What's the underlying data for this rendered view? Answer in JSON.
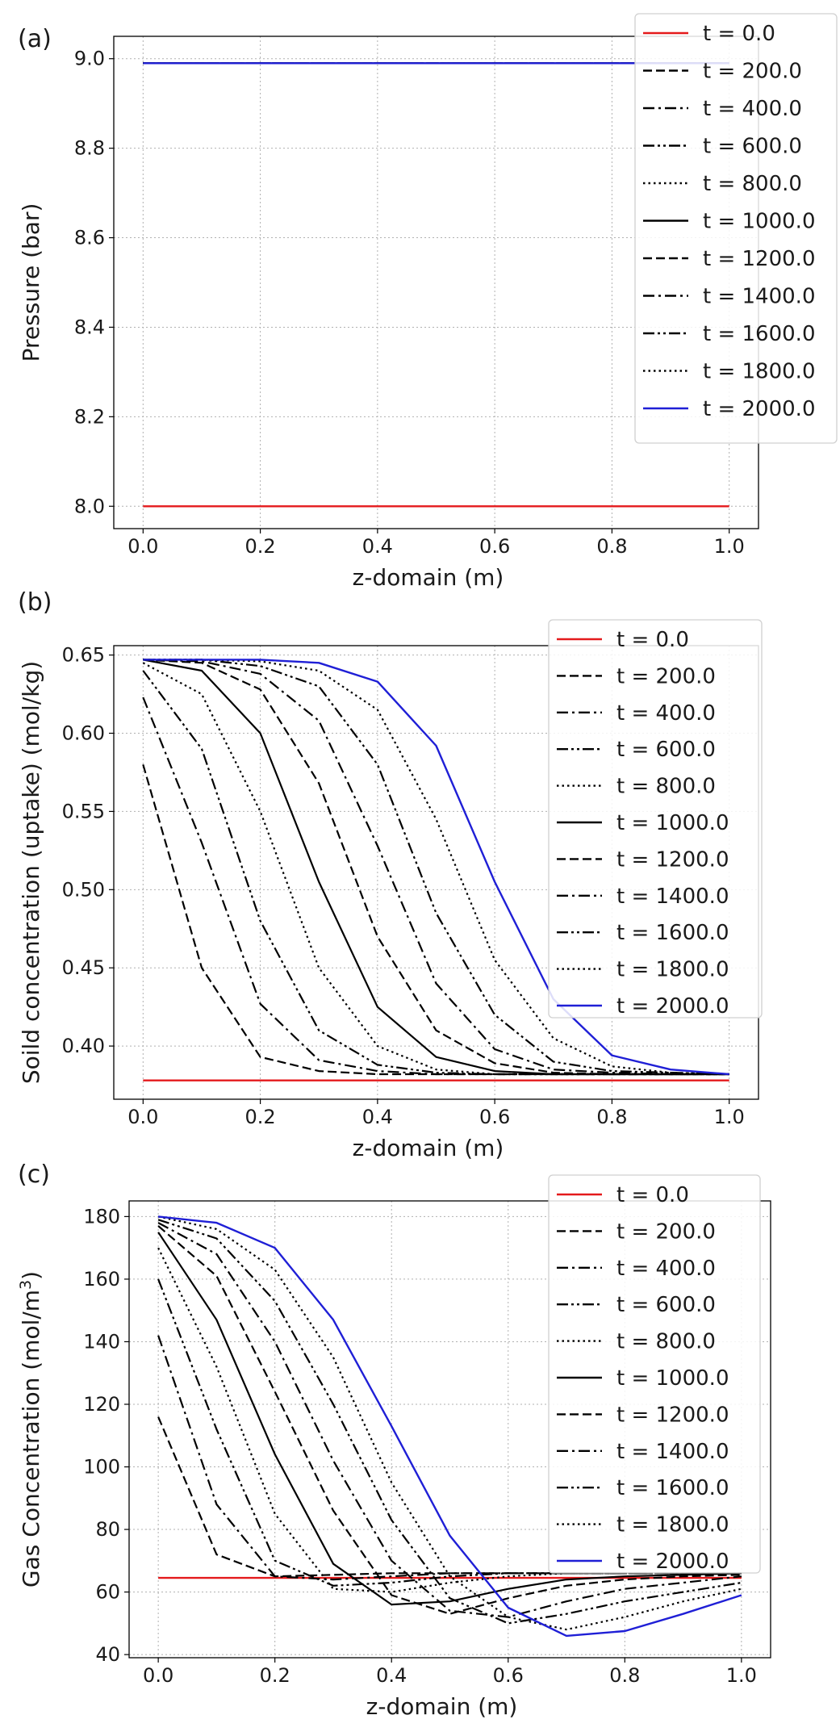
{
  "chart_data": [
    {
      "panel_label": "(a)",
      "type": "line",
      "xlabel": "z-domain (m)",
      "ylabel": "Pressure (bar)",
      "xlim": [
        -0.05,
        1.05
      ],
      "ylim": [
        7.95,
        9.05
      ],
      "xticks": [
        0.0,
        0.2,
        0.4,
        0.6,
        0.8,
        1.0
      ],
      "xtick_labels": [
        "0.0",
        "0.2",
        "0.4",
        "0.6",
        "0.8",
        "1.0"
      ],
      "yticks": [
        8.0,
        8.2,
        8.4,
        8.6,
        8.8,
        9.0
      ],
      "ytick_labels": [
        "8.0",
        "8.2",
        "8.4",
        "8.6",
        "8.8",
        "9.0"
      ],
      "grid": true,
      "legend_position": "top-right",
      "x": [
        0.0,
        0.1,
        0.2,
        0.3,
        0.4,
        0.5,
        0.6,
        0.7,
        0.8,
        0.9,
        1.0
      ],
      "series": [
        {
          "name": "t = 0.0",
          "color": "#e41a1c",
          "dash": "solid",
          "values": [
            8.0,
            8.0,
            8.0,
            8.0,
            8.0,
            8.0,
            8.0,
            8.0,
            8.0,
            8.0,
            8.0
          ]
        },
        {
          "name": "t = 200.0",
          "color": "#000000",
          "dash": "dashed",
          "values": [
            8.99,
            8.99,
            8.99,
            8.99,
            8.99,
            8.99,
            8.99,
            8.99,
            8.99,
            8.99,
            8.99
          ]
        },
        {
          "name": "t = 400.0",
          "color": "#000000",
          "dash": "dashdot",
          "values": [
            8.99,
            8.99,
            8.99,
            8.99,
            8.99,
            8.99,
            8.99,
            8.99,
            8.99,
            8.99,
            8.99
          ]
        },
        {
          "name": "t = 600.0",
          "color": "#000000",
          "dash": "dashdotdot",
          "values": [
            8.99,
            8.99,
            8.99,
            8.99,
            8.99,
            8.99,
            8.99,
            8.99,
            8.99,
            8.99,
            8.99
          ]
        },
        {
          "name": "t = 800.0",
          "color": "#000000",
          "dash": "dotted",
          "values": [
            8.99,
            8.99,
            8.99,
            8.99,
            8.99,
            8.99,
            8.99,
            8.99,
            8.99,
            8.99,
            8.99
          ]
        },
        {
          "name": "t = 1000.0",
          "color": "#000000",
          "dash": "solid",
          "values": [
            8.99,
            8.99,
            8.99,
            8.99,
            8.99,
            8.99,
            8.99,
            8.99,
            8.99,
            8.99,
            8.99
          ]
        },
        {
          "name": "t = 1200.0",
          "color": "#000000",
          "dash": "dashed",
          "values": [
            8.99,
            8.99,
            8.99,
            8.99,
            8.99,
            8.99,
            8.99,
            8.99,
            8.99,
            8.99,
            8.99
          ]
        },
        {
          "name": "t = 1400.0",
          "color": "#000000",
          "dash": "dashdot",
          "values": [
            8.99,
            8.99,
            8.99,
            8.99,
            8.99,
            8.99,
            8.99,
            8.99,
            8.99,
            8.99,
            8.99
          ]
        },
        {
          "name": "t = 1600.0",
          "color": "#000000",
          "dash": "dashdotdot",
          "values": [
            8.99,
            8.99,
            8.99,
            8.99,
            8.99,
            8.99,
            8.99,
            8.99,
            8.99,
            8.99,
            8.99
          ]
        },
        {
          "name": "t = 1800.0",
          "color": "#000000",
          "dash": "dotted",
          "values": [
            8.99,
            8.99,
            8.99,
            8.99,
            8.99,
            8.99,
            8.99,
            8.99,
            8.99,
            8.99,
            8.99
          ]
        },
        {
          "name": "t = 2000.0",
          "color": "#1f1fd6",
          "dash": "solid",
          "values": [
            8.99,
            8.99,
            8.99,
            8.99,
            8.99,
            8.99,
            8.99,
            8.99,
            8.99,
            8.99,
            8.99
          ]
        }
      ]
    },
    {
      "panel_label": "(b)",
      "type": "line",
      "xlabel": "z-domain (m)",
      "ylabel": "Soild concentration (uptake) (mol/kg)",
      "xlim": [
        -0.05,
        1.05
      ],
      "ylim": [
        0.366,
        0.656
      ],
      "xticks": [
        0.0,
        0.2,
        0.4,
        0.6,
        0.8,
        1.0
      ],
      "xtick_labels": [
        "0.0",
        "0.2",
        "0.4",
        "0.6",
        "0.8",
        "1.0"
      ],
      "yticks": [
        0.4,
        0.45,
        0.5,
        0.55,
        0.6,
        0.65
      ],
      "ytick_labels": [
        "0.40",
        "0.45",
        "0.50",
        "0.55",
        "0.60",
        "0.65"
      ],
      "grid": true,
      "legend_position": "top-right",
      "x": [
        0.0,
        0.1,
        0.2,
        0.3,
        0.4,
        0.5,
        0.6,
        0.7,
        0.8,
        0.9,
        1.0
      ],
      "series": [
        {
          "name": "t = 0.0",
          "color": "#e41a1c",
          "dash": "solid",
          "values": [
            0.378,
            0.378,
            0.378,
            0.378,
            0.378,
            0.378,
            0.378,
            0.378,
            0.378,
            0.378,
            0.378
          ]
        },
        {
          "name": "t = 200.0",
          "color": "#000000",
          "dash": "dashed",
          "values": [
            0.58,
            0.45,
            0.393,
            0.384,
            0.382,
            0.382,
            0.382,
            0.382,
            0.382,
            0.382,
            0.382
          ]
        },
        {
          "name": "t = 400.0",
          "color": "#000000",
          "dash": "dashdot",
          "values": [
            0.623,
            0.53,
            0.427,
            0.391,
            0.384,
            0.382,
            0.382,
            0.382,
            0.382,
            0.382,
            0.382
          ]
        },
        {
          "name": "t = 600.0",
          "color": "#000000",
          "dash": "dashdotdot",
          "values": [
            0.64,
            0.59,
            0.48,
            0.41,
            0.388,
            0.383,
            0.382,
            0.382,
            0.382,
            0.382,
            0.382
          ]
        },
        {
          "name": "t = 800.0",
          "color": "#000000",
          "dash": "dotted",
          "values": [
            0.645,
            0.625,
            0.55,
            0.45,
            0.4,
            0.385,
            0.382,
            0.382,
            0.382,
            0.382,
            0.382
          ]
        },
        {
          "name": "t = 1000.0",
          "color": "#000000",
          "dash": "solid",
          "values": [
            0.647,
            0.64,
            0.6,
            0.505,
            0.425,
            0.393,
            0.384,
            0.382,
            0.382,
            0.382,
            0.382
          ]
        },
        {
          "name": "t = 1200.0",
          "color": "#000000",
          "dash": "dashed",
          "values": [
            0.647,
            0.645,
            0.628,
            0.568,
            0.47,
            0.41,
            0.389,
            0.383,
            0.382,
            0.382,
            0.382
          ]
        },
        {
          "name": "t = 1400.0",
          "color": "#000000",
          "dash": "dashdot",
          "values": [
            0.647,
            0.646,
            0.638,
            0.608,
            0.528,
            0.44,
            0.398,
            0.385,
            0.383,
            0.382,
            0.382
          ]
        },
        {
          "name": "t = 1600.0",
          "color": "#000000",
          "dash": "dashdotdot",
          "values": [
            0.647,
            0.647,
            0.643,
            0.63,
            0.58,
            0.485,
            0.42,
            0.39,
            0.384,
            0.383,
            0.382
          ]
        },
        {
          "name": "t = 1800.0",
          "color": "#000000",
          "dash": "dotted",
          "values": [
            0.647,
            0.647,
            0.646,
            0.64,
            0.615,
            0.545,
            0.455,
            0.405,
            0.387,
            0.383,
            0.382
          ]
        },
        {
          "name": "t = 2000.0",
          "color": "#1f1fd6",
          "dash": "solid",
          "values": [
            0.647,
            0.647,
            0.647,
            0.645,
            0.633,
            0.592,
            0.505,
            0.43,
            0.394,
            0.385,
            0.382
          ]
        }
      ]
    },
    {
      "panel_label": "(c)",
      "type": "line",
      "xlabel": "z-domain (m)",
      "ylabel_main": "Gas Concentration (mol/m",
      "ylabel_sup": "3",
      "ylabel_close": ")",
      "xlim": [
        -0.05,
        1.05
      ],
      "ylim": [
        39,
        185
      ],
      "xticks": [
        0.0,
        0.2,
        0.4,
        0.6,
        0.8,
        1.0
      ],
      "xtick_labels": [
        "0.0",
        "0.2",
        "0.4",
        "0.6",
        "0.8",
        "1.0"
      ],
      "yticks": [
        40,
        60,
        80,
        100,
        120,
        140,
        160,
        180
      ],
      "ytick_labels": [
        "40",
        "60",
        "80",
        "100",
        "120",
        "140",
        "160",
        "180"
      ],
      "grid": true,
      "legend_position": "top-right",
      "x": [
        0.0,
        0.1,
        0.2,
        0.3,
        0.4,
        0.5,
        0.6,
        0.7,
        0.8,
        0.9,
        1.0
      ],
      "series": [
        {
          "name": "t = 0.0",
          "color": "#e41a1c",
          "dash": "solid",
          "values": [
            64.5,
            64.5,
            64.5,
            64.5,
            64.5,
            64.5,
            64.5,
            64.5,
            64.5,
            64.5,
            64.5
          ]
        },
        {
          "name": "t = 200.0",
          "color": "#000000",
          "dash": "dashed",
          "values": [
            116,
            72,
            65,
            65.5,
            66,
            66,
            66,
            66,
            66,
            66,
            66
          ]
        },
        {
          "name": "t = 400.0",
          "color": "#000000",
          "dash": "dashdot",
          "values": [
            142,
            88,
            65,
            64,
            65,
            66,
            66,
            66,
            66,
            66,
            66
          ]
        },
        {
          "name": "t = 600.0",
          "color": "#000000",
          "dash": "dashdotdot",
          "values": [
            160,
            112,
            70,
            62,
            63,
            65,
            66,
            66,
            66,
            66,
            66
          ]
        },
        {
          "name": "t = 800.0",
          "color": "#000000",
          "dash": "dotted",
          "values": [
            170,
            132,
            85,
            61,
            60,
            63,
            65,
            66,
            66,
            66,
            66
          ]
        },
        {
          "name": "t = 1000.0",
          "color": "#000000",
          "dash": "solid",
          "values": [
            175,
            147,
            104,
            69,
            56,
            57,
            61,
            64,
            65,
            65.5,
            66
          ]
        },
        {
          "name": "t = 1200.0",
          "color": "#000000",
          "dash": "dashed",
          "values": [
            177,
            161,
            124,
            86,
            59,
            53,
            58,
            62,
            64,
            65,
            65.5
          ]
        },
        {
          "name": "t = 1400.0",
          "color": "#000000",
          "dash": "dashdot",
          "values": [
            178,
            168,
            140,
            102,
            70,
            54,
            52,
            57,
            61,
            63,
            65
          ]
        },
        {
          "name": "t = 1600.0",
          "color": "#000000",
          "dash": "dashdotdot",
          "values": [
            179,
            173,
            153,
            120,
            83,
            58,
            50,
            53,
            57,
            60,
            63
          ]
        },
        {
          "name": "t = 1800.0",
          "color": "#000000",
          "dash": "dotted",
          "values": [
            180,
            176,
            163,
            135,
            95,
            65,
            52,
            48,
            52,
            57,
            61
          ]
        },
        {
          "name": "t = 2000.0",
          "color": "#1f1fd6",
          "dash": "solid",
          "values": [
            180,
            178,
            170,
            147,
            113,
            78,
            55,
            46,
            47.5,
            53,
            59
          ]
        }
      ]
    }
  ]
}
